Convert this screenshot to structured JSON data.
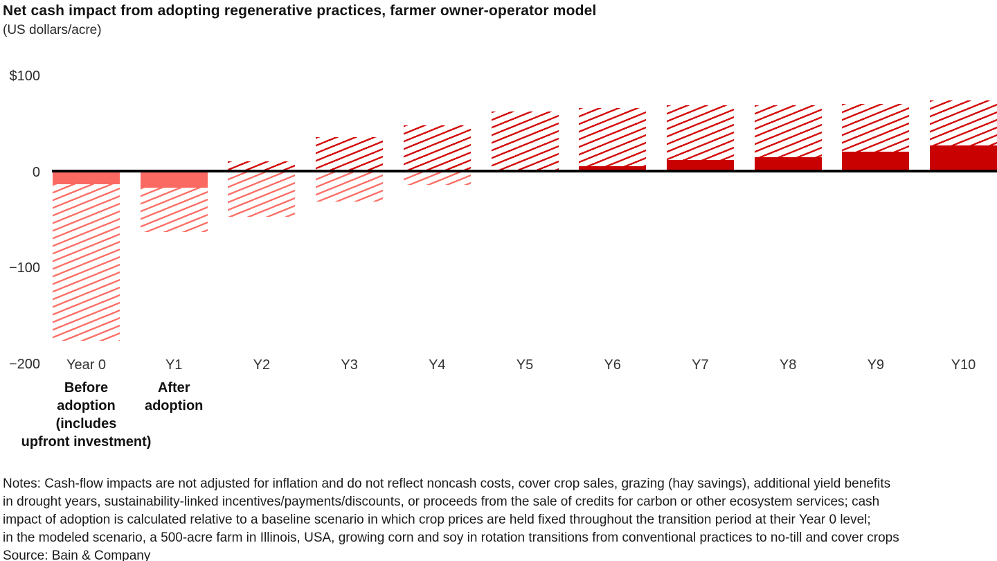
{
  "header": {
    "title": "Net cash impact from adopting regenerative practices, farmer owner-operator model",
    "subtitle": "(US dollars/acre)"
  },
  "chart_data": {
    "type": "bar",
    "title": "Net cash impact from adopting regenerative practices, farmer owner-operator model",
    "unit": "US dollars/acre",
    "ylim": [
      -200,
      100
    ],
    "grid": false,
    "legend": "none",
    "yticks": [
      {
        "label": "$100",
        "value": 100
      },
      {
        "label": "0",
        "value": 0
      },
      {
        "label": "−100",
        "value": -100
      },
      {
        "label": "−200",
        "value": -200
      }
    ],
    "encoding_note": "solid bar = modeled net cash impact; hatched bar = estimated range (US dollars per acre)",
    "bars": [
      {
        "label": "Year 0",
        "solid": -14,
        "hatch_low": -177,
        "hatch_high": -14,
        "annotation_lines": [
          "Before",
          "adoption",
          "(includes",
          "upfront investment)"
        ]
      },
      {
        "label": "Y1",
        "solid": -18,
        "hatch_low": -64,
        "hatch_high": -18,
        "annotation_lines": [
          "After",
          "adoption"
        ]
      },
      {
        "label": "Y2",
        "solid": 0,
        "hatch_low": -48,
        "hatch_high": 10,
        "annotation_lines": []
      },
      {
        "label": "Y3",
        "solid": 0,
        "hatch_low": -32,
        "hatch_high": 35,
        "annotation_lines": []
      },
      {
        "label": "Y4",
        "solid": 0,
        "hatch_low": -15,
        "hatch_high": 47,
        "annotation_lines": []
      },
      {
        "label": "Y5",
        "solid": 0,
        "hatch_low": 0,
        "hatch_high": 62,
        "annotation_lines": []
      },
      {
        "label": "Y6",
        "solid": 5,
        "hatch_low": 5,
        "hatch_high": 65,
        "annotation_lines": []
      },
      {
        "label": "Y7",
        "solid": 11,
        "hatch_low": 11,
        "hatch_high": 68,
        "annotation_lines": []
      },
      {
        "label": "Y8",
        "solid": 14,
        "hatch_low": 14,
        "hatch_high": 68,
        "annotation_lines": []
      },
      {
        "label": "Y9",
        "solid": 20,
        "hatch_low": 20,
        "hatch_high": 70,
        "annotation_lines": []
      },
      {
        "label": "Y10",
        "solid": 26,
        "hatch_low": 26,
        "hatch_high": 73,
        "annotation_lines": []
      }
    ],
    "colors": {
      "solid_positive": "#c90101",
      "hatch_positive": "#d30b0b",
      "solid_negative": "#fb6a62",
      "hatch_negative": "#fb7168",
      "axis_line": "#000000"
    }
  },
  "notes": {
    "lines": [
      "Notes: Cash-flow impacts are not adjusted for inflation and do not reflect noncash costs, cover crop sales, grazing (hay savings), additional yield benefits",
      "in drought years, sustainability-linked incentives/payments/discounts, or proceeds from the sale of credits for carbon or other ecosystem services; cash",
      "impact of adoption is calculated relative to a baseline scenario in which crop prices are held fixed throughout the transition period at their Year 0 level;",
      "in the modeled scenario, a 500-acre farm in Illinois, USA, growing corn and soy in rotation transitions from conventional practices to no-till and cover crops"
    ],
    "source": "Source: Bain & Company"
  }
}
